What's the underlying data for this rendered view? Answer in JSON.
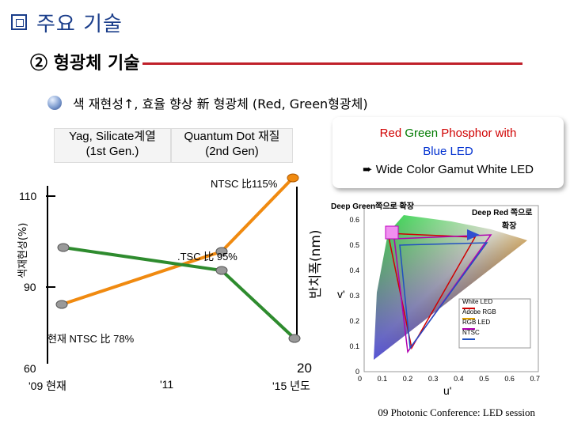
{
  "title": "주요 기술",
  "section": "② 형광체 기술",
  "bullet": "색 재현성↑, 효율 향상 新 형광체 (Red, Green형광체)",
  "gen1": {
    "line1": "Yag, Silicate계열",
    "line2": "(1st Gen.)"
  },
  "gen2": {
    "line1": "Quantum Dot 재질",
    "line2": "(2nd Gen)"
  },
  "callout": {
    "red": "Red",
    "green": "Green",
    "rest": "Phosphor with",
    "blue": "Blue",
    "led": "LED",
    "line3": "Wide Color Gamut White LED",
    "arrow": "➨"
  },
  "left_chart": {
    "ylabel": "색재현성(%)",
    "y_ticks": [
      "110",
      "90"
    ],
    "ntsc115": "NTSC 比115%",
    "ntsc95": ".TSC 比 95%",
    "ntsc78": "현재 NTSC 比 78%",
    "x_left_num": "60",
    "x_right_num": "20",
    "x_labels": [
      "'09 현재",
      "'11",
      "'15  년도"
    ],
    "right_axis_label": "반치폭(nm)",
    "colors": {
      "orange": "#f08a10",
      "green": "#2e8b2e",
      "axis": "#000000"
    }
  },
  "cie": {
    "deep_green": "Deep Green쪽으로 확장",
    "deep_red_1": "Deep Red 쪽으로",
    "deep_red_2": "확장",
    "v_label": "v'",
    "u_label": "u'",
    "y_ticks": [
      "0.6",
      "0.5",
      "0.4",
      "0.3",
      "0.2",
      "0.1",
      "0"
    ],
    "x_ticks": [
      "0",
      "0.1",
      "0.2",
      "0.3",
      "0.4",
      "0.5",
      "0.6",
      "0.7"
    ],
    "legend": [
      "White LED",
      "Adobe RGB",
      "RGB LED",
      "NTSC"
    ],
    "legend_colors": [
      "#d00000",
      "#e0a000",
      "#b000b0",
      "#2050c0"
    ]
  },
  "caption": "09 Photonic Conference: LED session"
}
